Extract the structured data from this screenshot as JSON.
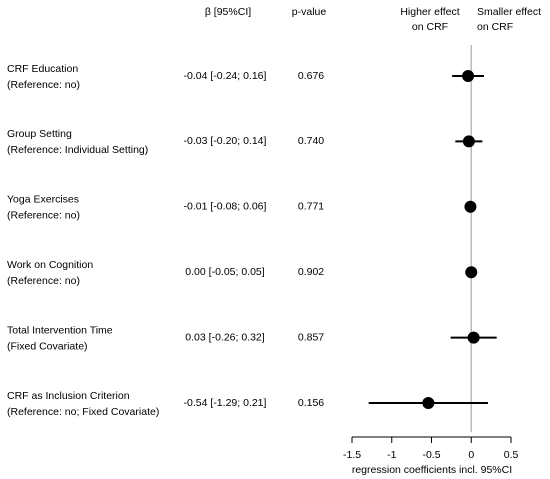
{
  "chart_data": {
    "type": "forest",
    "header_estimate": "β [95%CI]",
    "header_p": "p-value",
    "left_note": [
      "Higher effect",
      "on CRF"
    ],
    "right_note": [
      "Smaller effect",
      "on CRF"
    ],
    "rows": [
      {
        "label": [
          "CRF Education",
          "(Reference: no)"
        ],
        "value": -0.04,
        "lower": -0.24,
        "upper": 0.16,
        "value_label": "-0.04 [-0.24; 0.16]",
        "p_value": "0.676"
      },
      {
        "label": [
          "Group Setting",
          "(Reference: Individual Setting)"
        ],
        "value": -0.03,
        "lower": -0.2,
        "upper": 0.14,
        "value_label": "-0.03 [-0.20; 0.14]",
        "p_value": "0.740"
      },
      {
        "label": [
          "Yoga Exercises",
          "(Reference: no)"
        ],
        "value": -0.01,
        "lower": -0.08,
        "upper": 0.06,
        "value_label": "-0.01 [-0.08; 0.06]",
        "p_value": "0.771"
      },
      {
        "label": [
          "Work on Cognition",
          "(Reference: no)"
        ],
        "value": 0.0,
        "lower": -0.05,
        "upper": 0.05,
        "value_label": "0.00 [-0.05; 0.05]",
        "p_value": "0.902"
      },
      {
        "label": [
          "Total Intervention Time",
          "(Fixed Covariate)"
        ],
        "value": 0.03,
        "lower": -0.26,
        "upper": 0.32,
        "value_label": "0.03 [-0.26; 0.32]",
        "p_value": "0.857"
      },
      {
        "label": [
          "CRF as Inclusion Criterion",
          "(Reference: no; Fixed Covariate)"
        ],
        "value": -0.54,
        "lower": -1.29,
        "upper": 0.21,
        "value_label": "-0.54 [-1.29; 0.21]",
        "p_value": "0.156"
      }
    ],
    "xlabel": "regression coefficients incl. 95%CI",
    "xlim": [
      -1.5,
      0.5
    ],
    "xticks": [
      -1.5,
      -1,
      -0.5,
      0,
      0.5
    ],
    "refline": 0,
    "color": "#000000"
  }
}
